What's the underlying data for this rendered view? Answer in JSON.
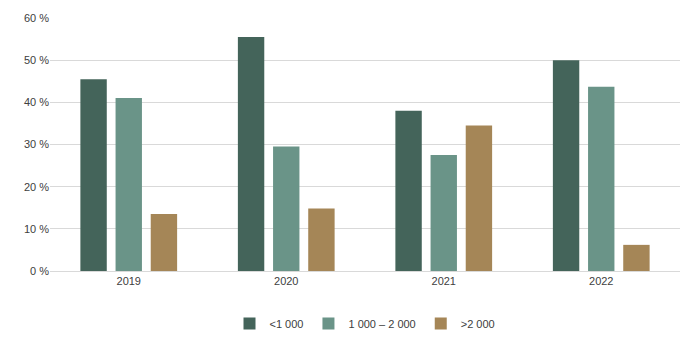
{
  "chart_data": {
    "type": "bar",
    "categories": [
      "2019",
      "2020",
      "2021",
      "2022"
    ],
    "series": [
      {
        "name": "<1 000",
        "color": "#44645a",
        "values": [
          45.5,
          55.5,
          38,
          50
        ]
      },
      {
        "name": "1 000 – 2 000",
        "color": "#6a9488",
        "values": [
          41,
          29.5,
          27.5,
          43.7
        ]
      },
      {
        "name": ">2 000",
        "color": "#a58657",
        "values": [
          13.5,
          14.8,
          34.5,
          6.2
        ]
      }
    ],
    "ylim": [
      0,
      60
    ],
    "yticks": [
      {
        "value": 0,
        "label": "0 %"
      },
      {
        "value": 10,
        "label": "10 %"
      },
      {
        "value": 20,
        "label": "20 %"
      },
      {
        "value": 30,
        "label": "30 %"
      },
      {
        "value": 40,
        "label": "40 %"
      },
      {
        "value": 50,
        "label": "50 %"
      },
      {
        "value": 60,
        "label": "60 %"
      }
    ],
    "grid": true,
    "legend": "bottom"
  }
}
